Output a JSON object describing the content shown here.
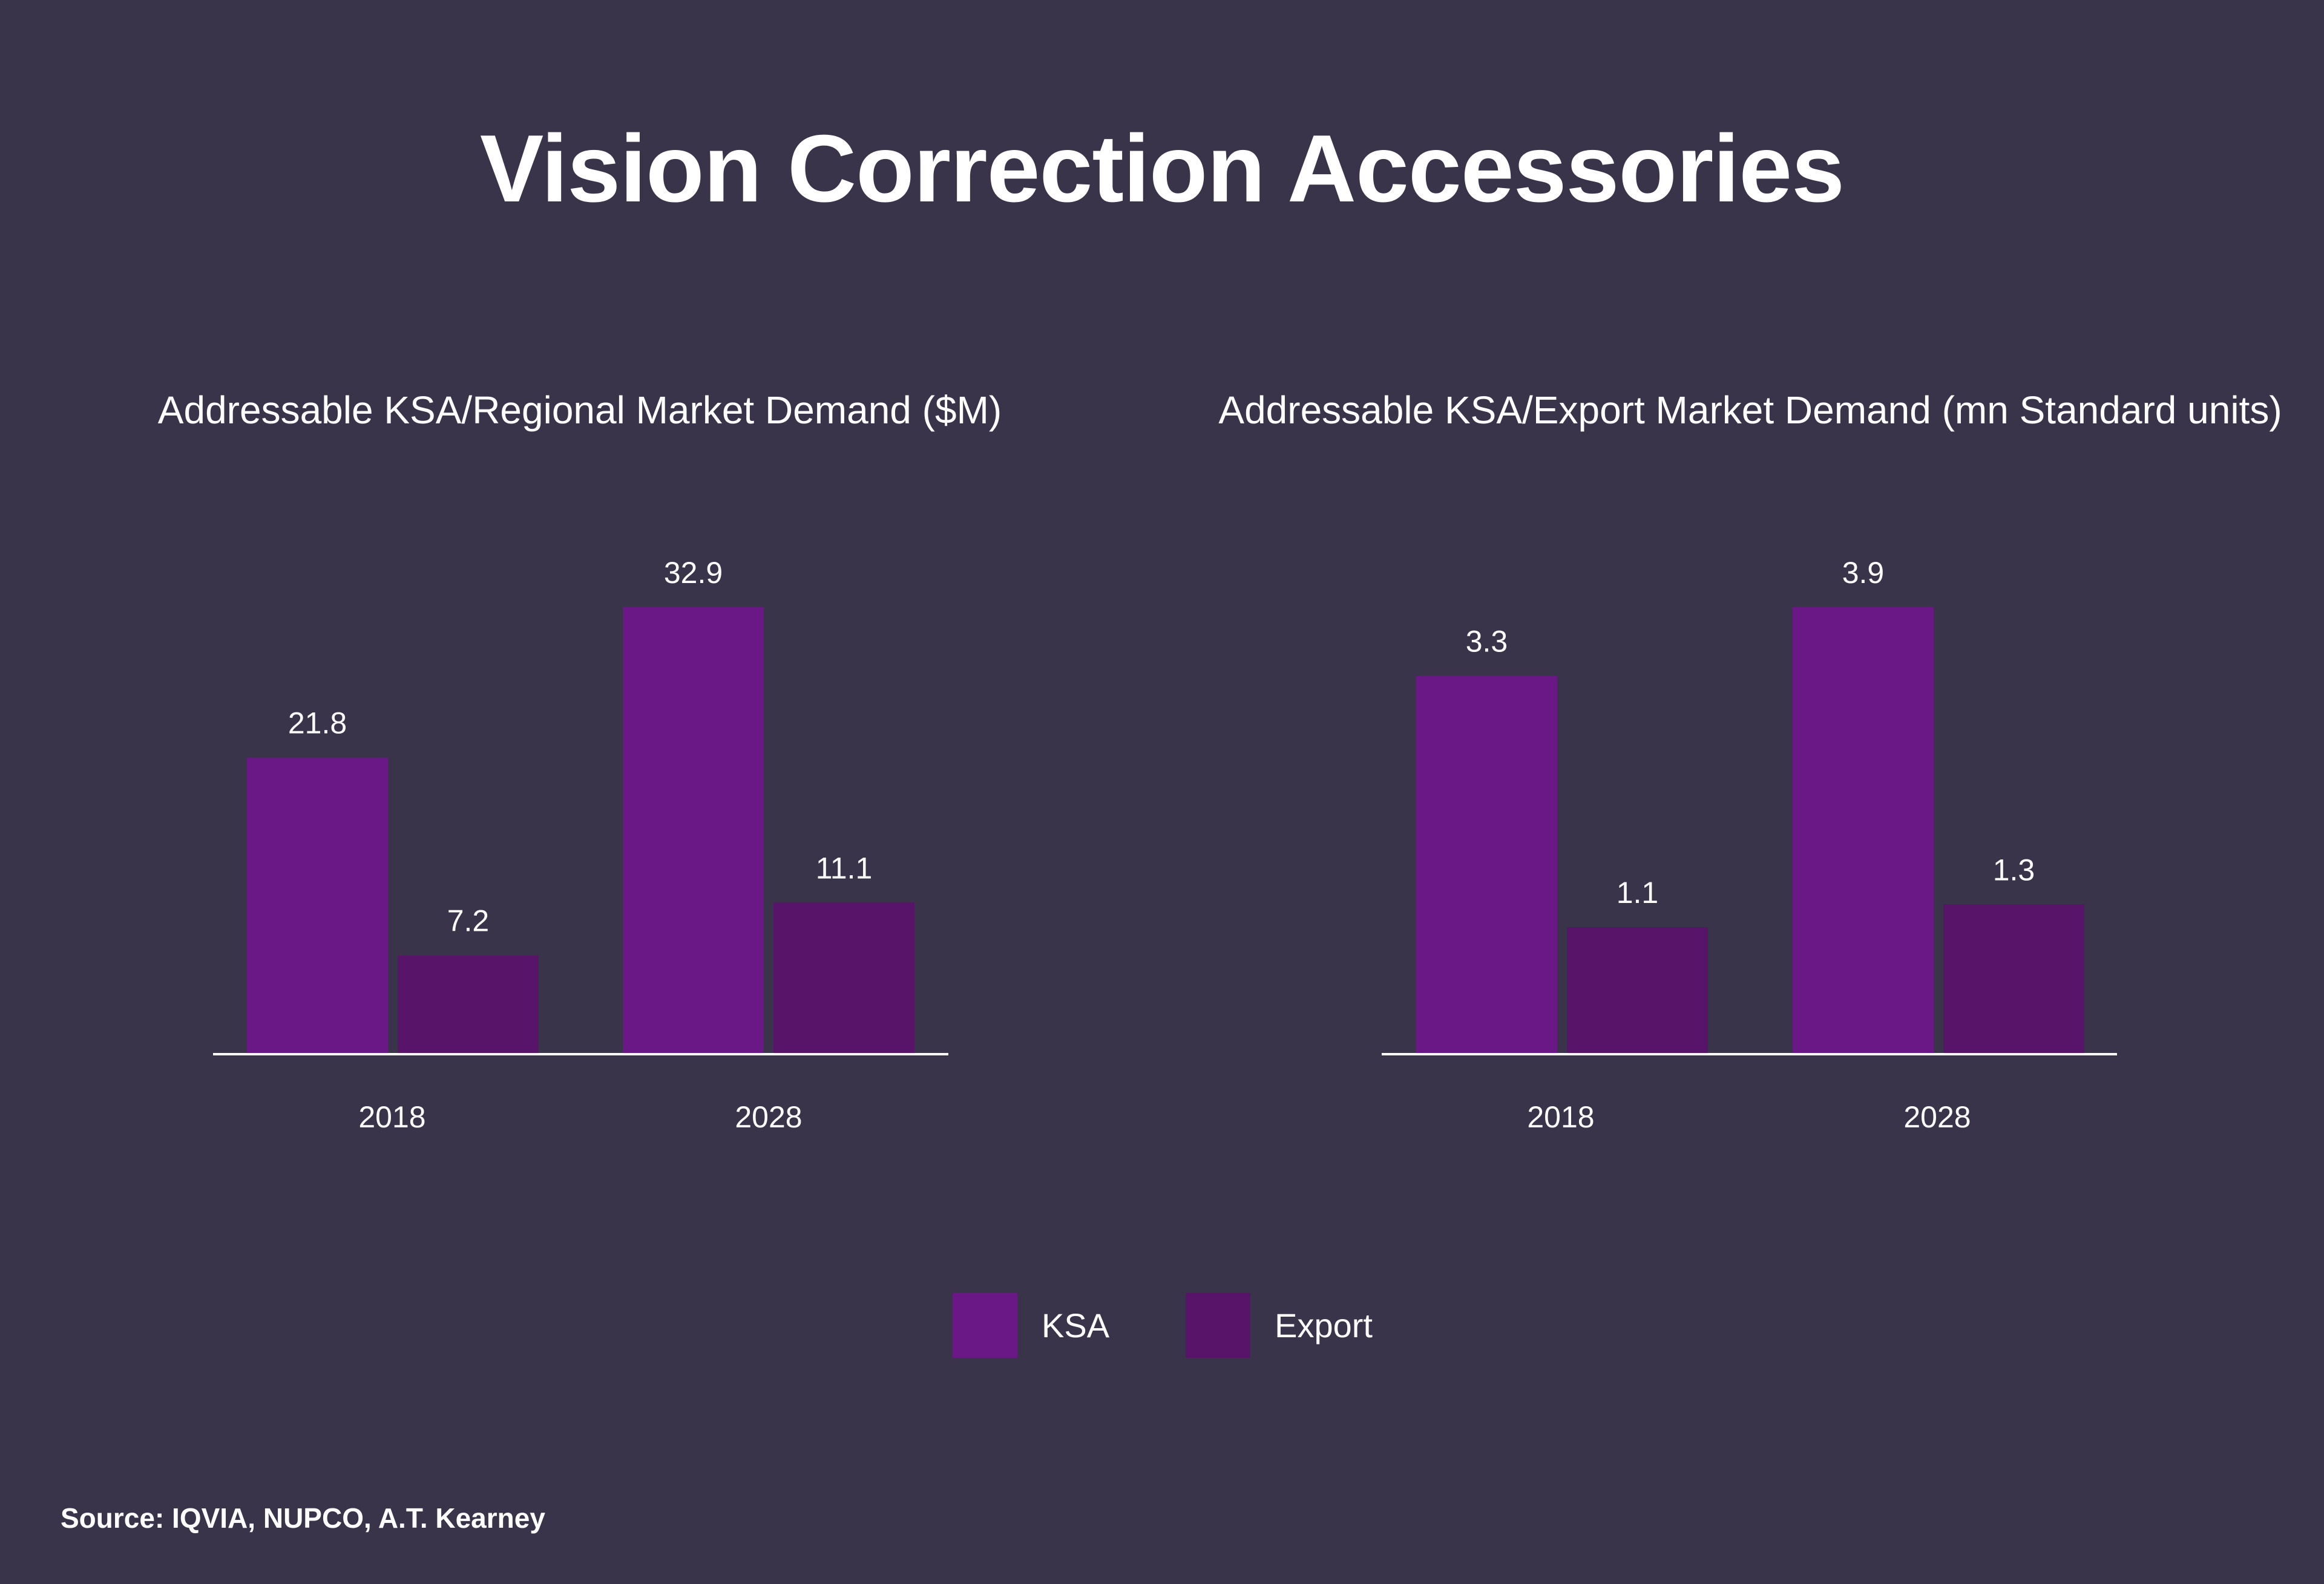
{
  "page": {
    "title": "Vision Correction Accessories",
    "source": "Source: IQVIA, NUPCO, A.T. Kearney",
    "background": "#3a344b"
  },
  "legend": [
    {
      "name": "KSA",
      "color": "#691885"
    },
    {
      "name": "Export",
      "color": "#571468"
    }
  ],
  "chart_data": [
    {
      "type": "bar",
      "title": "Addressable KSA/Regional Market Demand ($M)",
      "categories": [
        "2018",
        "2028"
      ],
      "series": [
        {
          "name": "KSA",
          "values": [
            21.8,
            32.9
          ],
          "labels": [
            "21.8",
            "32.9"
          ],
          "color": "#691885"
        },
        {
          "name": "Export",
          "values": [
            7.2,
            11.1
          ],
          "labels": [
            "7.2",
            "11.1"
          ],
          "color": "#571468"
        }
      ],
      "xlabel": "",
      "ylabel": "",
      "ylim": [
        0,
        32.9
      ],
      "grid": false,
      "legend": "bottom-center"
    },
    {
      "type": "bar",
      "title": "Addressable KSA/Export Market Demand (mn Standard units)",
      "categories": [
        "2018",
        "2028"
      ],
      "series": [
        {
          "name": "KSA",
          "values": [
            3.3,
            3.9
          ],
          "labels": [
            "3.3",
            "3.9"
          ],
          "color": "#691885"
        },
        {
          "name": "Export",
          "values": [
            1.1,
            1.3
          ],
          "labels": [
            "1.1",
            "1.3"
          ],
          "color": "#571468"
        }
      ],
      "xlabel": "",
      "ylabel": "",
      "ylim": [
        0,
        3.9
      ],
      "grid": false,
      "legend": "bottom-center"
    }
  ]
}
